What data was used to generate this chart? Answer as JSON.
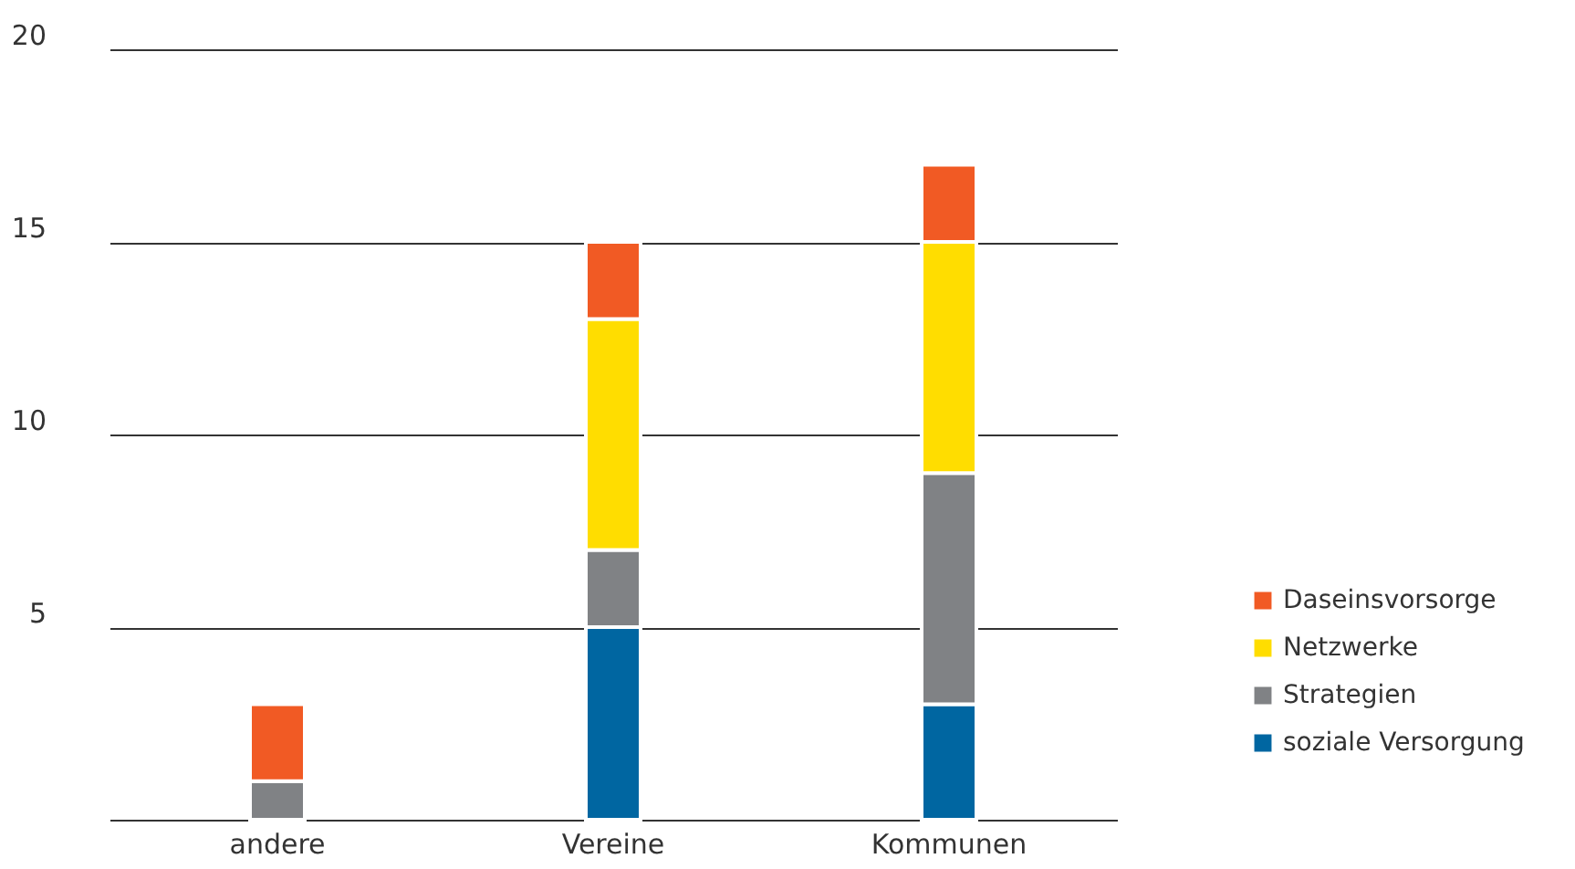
{
  "chart_data": {
    "type": "bar",
    "stacked": true,
    "categories": [
      "andere",
      "Vereine",
      "Kommunen"
    ],
    "series": [
      {
        "name": "soziale Versorgung",
        "color": "#0066a1",
        "values": [
          null,
          5,
          3
        ]
      },
      {
        "name": "Strategien",
        "color": "#808285",
        "values": [
          1,
          2,
          6
        ]
      },
      {
        "name": "Netzwerke",
        "color": "#ffdd00",
        "values": [
          null,
          6,
          6
        ]
      },
      {
        "name": "Daseinsvorsorge",
        "color": "#f15a24",
        "values": [
          2,
          2,
          2
        ]
      }
    ],
    "ylim": [
      0,
      20
    ],
    "yticks": [
      {
        "value": 0,
        "label": null
      },
      5,
      10,
      15,
      20
    ],
    "grid": "y",
    "legend": "bottom right"
  }
}
